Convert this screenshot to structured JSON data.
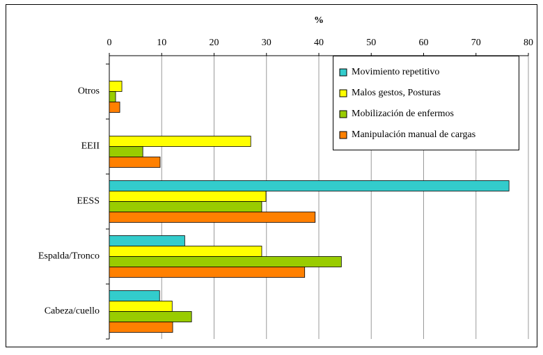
{
  "chart_data": {
    "type": "hbar",
    "x_label": "%",
    "categories": [
      "Otros",
      "EEII",
      "EESS",
      "Espalda/Tronco",
      "Cabeza/cuello"
    ],
    "series": [
      {
        "name": "Movimiento repetitivo",
        "color": "#33cccc",
        "values": [
          0,
          0,
          76.3,
          14.4,
          9.6
        ]
      },
      {
        "name": "Malos gestos, Posturas",
        "color": "#ffff00",
        "values": [
          2.4,
          27.0,
          29.9,
          29.1,
          12.0
        ]
      },
      {
        "name": "Mobilización de enfermos",
        "color": "#99cc00",
        "values": [
          1.2,
          6.4,
          29.1,
          44.3,
          15.7
        ]
      },
      {
        "name": "Manipulación manual de cargas",
        "color": "#ff8000",
        "values": [
          2.0,
          9.7,
          39.3,
          37.3,
          12.1
        ]
      }
    ],
    "xlim": [
      0,
      80
    ],
    "xticks": [
      0,
      10,
      20,
      30,
      40,
      50,
      60,
      70,
      80
    ],
    "grid": true,
    "legend": "top-right"
  }
}
